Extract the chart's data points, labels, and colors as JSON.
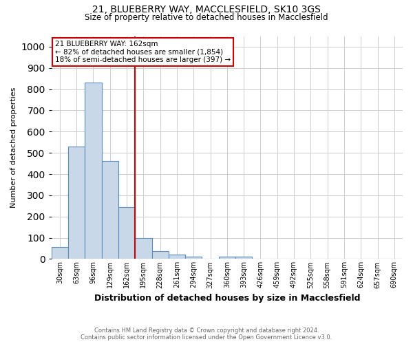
{
  "title1": "21, BLUEBERRY WAY, MACCLESFIELD, SK10 3GS",
  "title2": "Size of property relative to detached houses in Macclesfield",
  "xlabel": "Distribution of detached houses by size in Macclesfield",
  "ylabel": "Number of detached properties",
  "footnote1": "Contains HM Land Registry data © Crown copyright and database right 2024.",
  "footnote2": "Contains public sector information licensed under the Open Government Licence v3.0.",
  "bar_labels": [
    "30sqm",
    "63sqm",
    "96sqm",
    "129sqm",
    "162sqm",
    "195sqm",
    "228sqm",
    "261sqm",
    "294sqm",
    "327sqm",
    "360sqm",
    "393sqm",
    "426sqm",
    "459sqm",
    "492sqm",
    "525sqm",
    "558sqm",
    "591sqm",
    "624sqm",
    "657sqm",
    "690sqm"
  ],
  "bar_values": [
    55,
    530,
    830,
    460,
    245,
    100,
    37,
    22,
    12,
    0,
    10,
    10,
    0,
    0,
    0,
    0,
    0,
    0,
    0,
    0,
    0
  ],
  "bar_color": "#c8d8e8",
  "bar_edge_color": "#5b8db8",
  "marker_index": 4,
  "marker_color": "#cc0000",
  "annotation_line1": "21 BLUEBERRY WAY: 162sqm",
  "annotation_line2": "← 82% of detached houses are smaller (1,854)",
  "annotation_line3": "18% of semi-detached houses are larger (397) →",
  "annotation_box_color": "#ffffff",
  "annotation_box_edge": "#cc0000",
  "ylim": [
    0,
    1050
  ],
  "yticks": [
    0,
    100,
    200,
    300,
    400,
    500,
    600,
    700,
    800,
    900,
    1000
  ],
  "background_color": "#ffffff",
  "grid_color": "#cccccc"
}
